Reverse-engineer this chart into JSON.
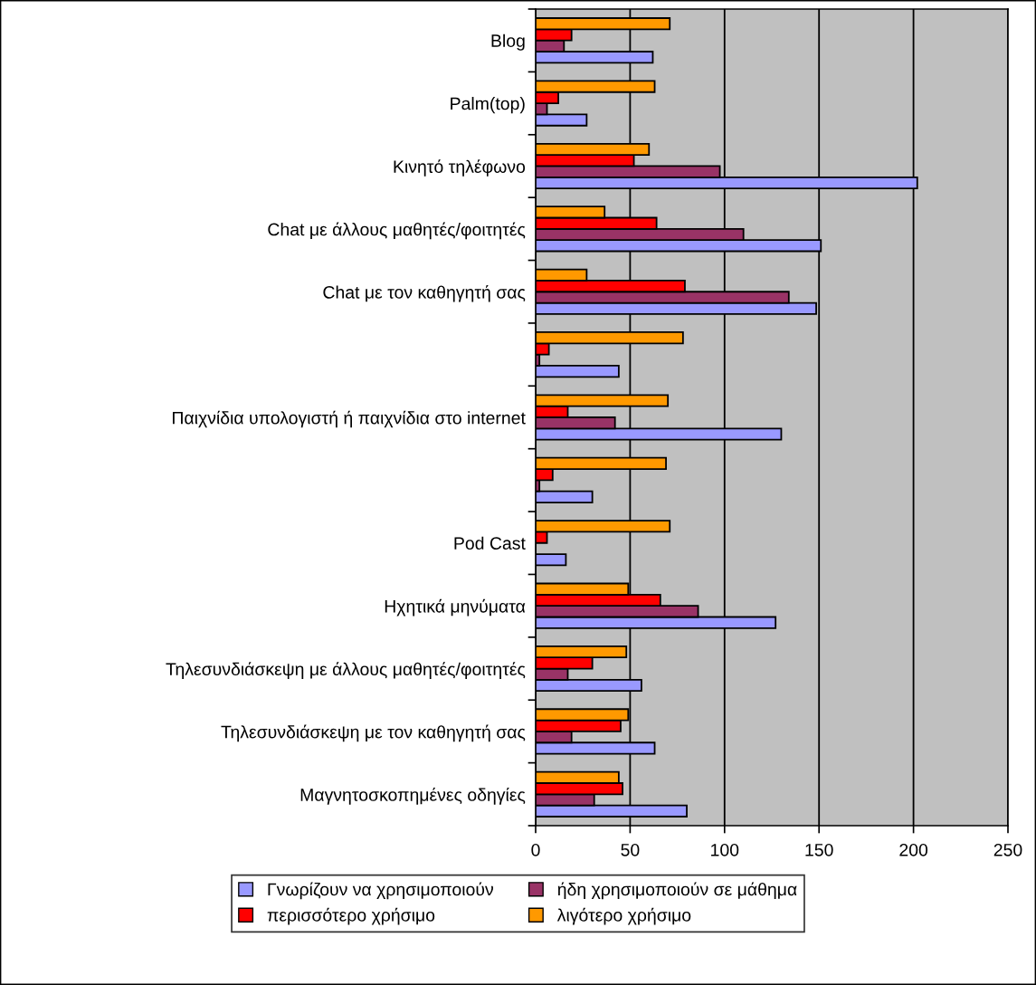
{
  "chart_data": {
    "type": "bar",
    "orientation": "horizontal",
    "categories": [
      "Blog",
      "Palm(top)",
      "Κινητό τηλέφωνο",
      "Chat με άλλους μαθητές/φοιτητές",
      "Chat με τον καθηγητή σας",
      null,
      "Παιχνίδια υπολογιστή ή παιχνίδια στο internet",
      null,
      "Pod Cast",
      "Ηχητικά μηνύματα",
      "Τηλεσυνδιάσκεψη με άλλους μαθητές/φοιτητές",
      "Τηλεσυνδιάσκεψη με τον καθηγητή σας",
      "Μαγνητοσκοπημένες οδηγίες"
    ],
    "series": [
      {
        "name": "Γνωρίζουν να χρησιμοποιούν",
        "color": "#9999ff",
        "values": [
          62,
          27,
          202,
          151,
          148.5,
          44,
          130,
          30,
          16,
          127,
          56,
          63,
          80
        ]
      },
      {
        "name": "ήδη χρησιμοποιούν σε μάθημα",
        "color": "#993366",
        "values": [
          15,
          6,
          97.5,
          110,
          134,
          2,
          42,
          2,
          0,
          86,
          17,
          19,
          31
        ]
      },
      {
        "name": "περισσότερο χρήσιμο",
        "color": "#ff0000",
        "values": [
          19,
          12,
          52,
          64,
          79,
          7,
          17,
          9,
          6,
          66,
          30,
          45,
          46
        ]
      },
      {
        "name": "λιγότερο χρήσιμο",
        "color": "#ff9900",
        "values": [
          71,
          63,
          60,
          36.5,
          27,
          78,
          70,
          69,
          71,
          49,
          48,
          49,
          44
        ]
      }
    ],
    "xlim": [
      0,
      250
    ],
    "xticks": [
      0,
      50,
      100,
      150,
      200,
      250
    ],
    "grid": "x",
    "legend": "bottom"
  }
}
